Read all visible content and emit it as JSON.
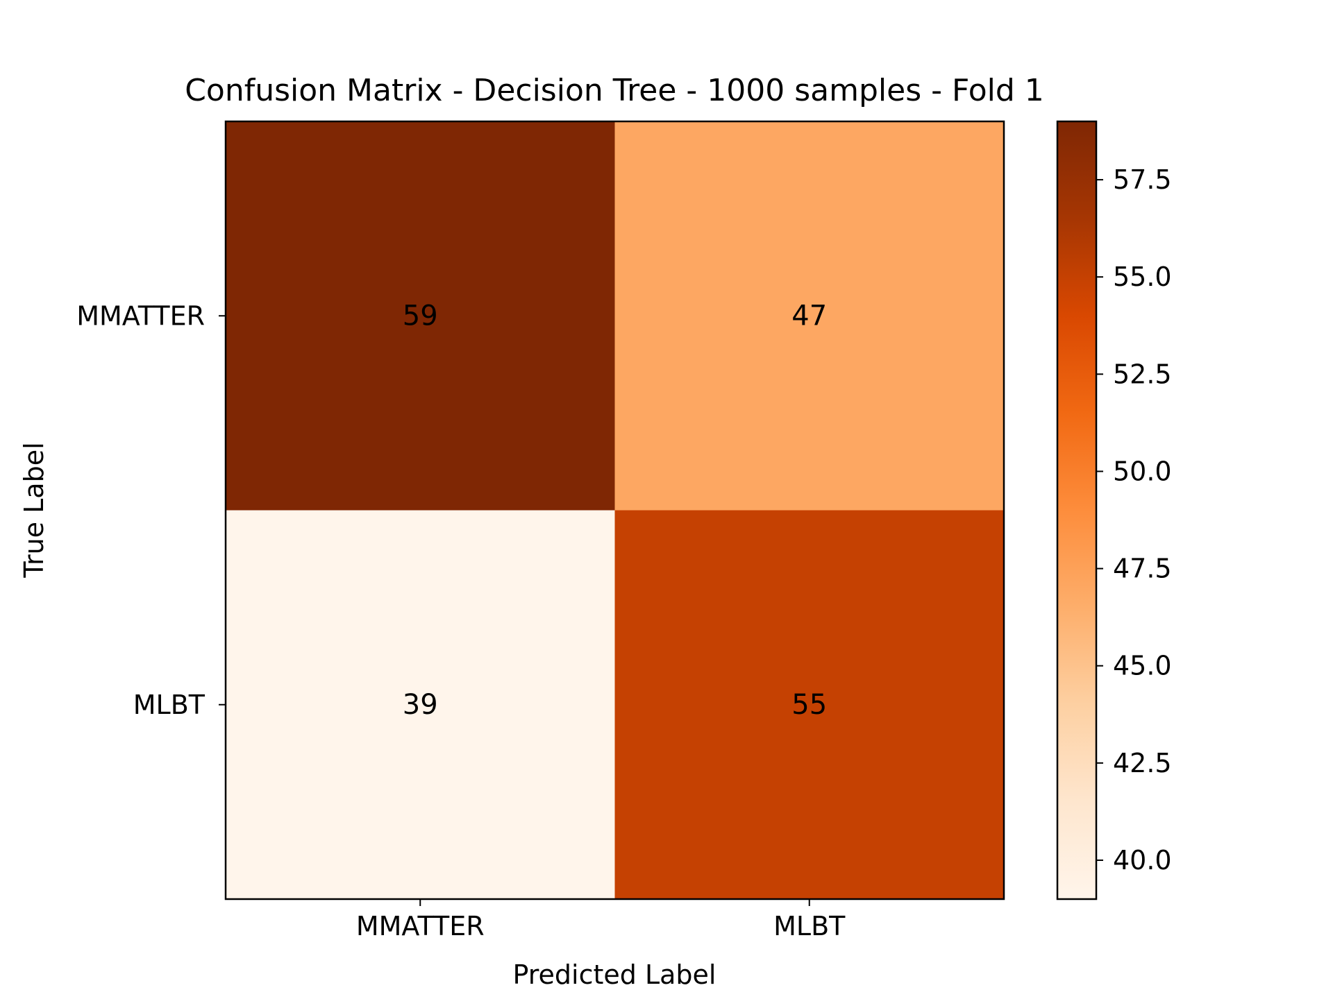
{
  "chart_data": {
    "type": "heatmap",
    "title": "Confusion Matrix - Decision Tree - 1000 samples - Fold 1",
    "xlabel": "Predicted Label",
    "ylabel": "True Label",
    "x_categories": [
      "MMATTER",
      "MLBT"
    ],
    "y_categories": [
      "MMATTER",
      "MLBT"
    ],
    "values": [
      [
        59,
        47
      ],
      [
        39,
        55
      ]
    ],
    "colormap": "Oranges",
    "colorbar": {
      "range": [
        39,
        59
      ],
      "ticks": [
        40.0,
        42.5,
        45.0,
        47.5,
        50.0,
        52.5,
        55.0,
        57.5
      ],
      "tick_labels": [
        "40.0",
        "42.5",
        "45.0",
        "47.5",
        "50.0",
        "52.5",
        "55.0",
        "57.5"
      ]
    },
    "grid": false
  }
}
